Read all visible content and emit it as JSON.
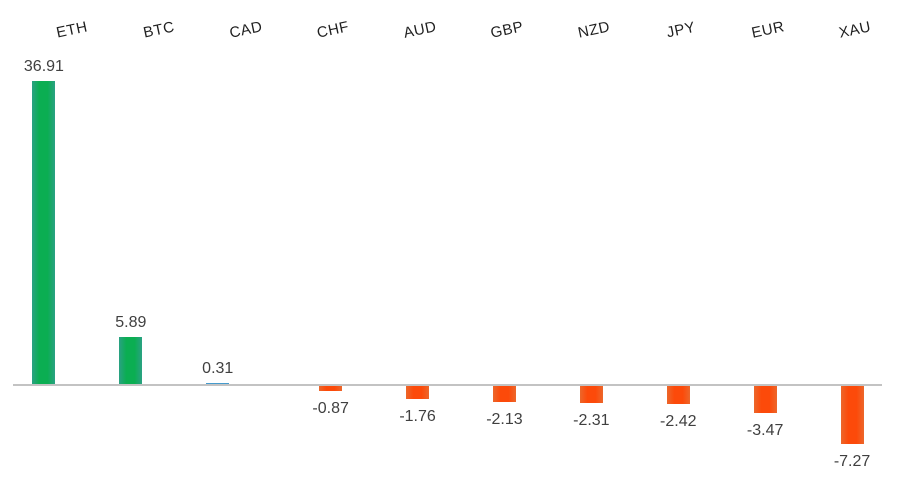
{
  "chart_data": {
    "type": "bar",
    "title": "",
    "xlabel": "",
    "ylabel": "",
    "categories": [
      "ETH",
      "BTC",
      "CAD",
      "CHF",
      "AUD",
      "GBP",
      "NZD",
      "JPY",
      "EUR",
      "XAU"
    ],
    "values": [
      36.91,
      5.89,
      0.31,
      -0.87,
      -1.76,
      -2.13,
      -2.31,
      -2.42,
      -3.47,
      -7.27
    ],
    "value_labels": [
      "36.91",
      "5.89",
      "0.31",
      "-0.87",
      "-1.76",
      "-2.13",
      "-2.31",
      "-2.42",
      "-3.47",
      "-7.27"
    ],
    "bar_color_keys": [
      "green",
      "green",
      "blue",
      "orange",
      "orange",
      "orange",
      "orange",
      "orange",
      "orange",
      "orange"
    ],
    "palette": {
      "green_mid": "#0bae52",
      "green_edge": "#2aa183",
      "orange_mid": "#fc4a0a",
      "orange_edge": "#ec672b",
      "blue": "#469bcd"
    },
    "axis_line_color": "#c3c3c3",
    "category_label_color": "#1f1f1f",
    "value_label_color": "#404040",
    "background_color": "#ffffff",
    "ylim": [
      -12,
      46
    ],
    "layout_hints": {
      "gridlines": false,
      "legend": false,
      "y_axis_visible": false,
      "category_labels_position": "top",
      "category_label_rotation_deg": -12,
      "value_labels_position": "outside-end"
    }
  }
}
